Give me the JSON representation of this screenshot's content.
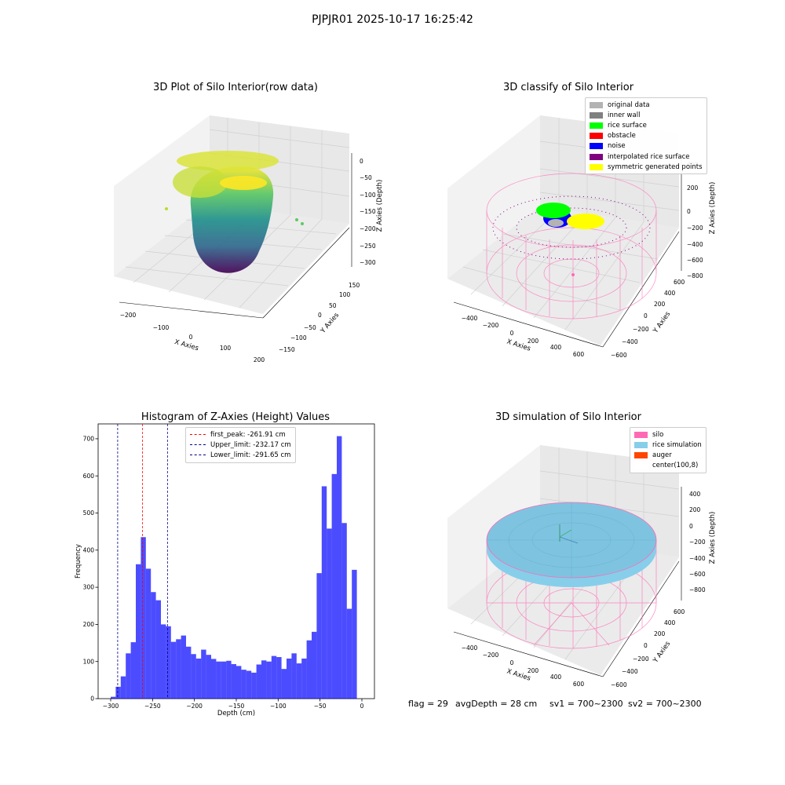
{
  "figure": {
    "title": "PJPJR01 2025-10-17 16:25:42",
    "status": {
      "flag": "flag = 29",
      "avg_depth": "avgDepth = 28 cm",
      "sv1": "sv1 = 700~2300",
      "sv2": "sv2 = 700~2300"
    }
  },
  "chart_data": [
    {
      "type": "scatter",
      "projection": "3d",
      "title": "3D Plot of Silo Interior(row data)",
      "xlabel": "X Axies",
      "ylabel": "Y Axies",
      "zlabel": "Z Axies (Depth)",
      "xticks": [
        "−200",
        "−100",
        "0",
        "100",
        "200"
      ],
      "yticks": [
        "−150",
        "−100",
        "−50",
        "0",
        "50",
        "100",
        "150"
      ],
      "zticks": [
        "0",
        "−50",
        "−100",
        "−150",
        "−200",
        "−250",
        "−300"
      ],
      "xlim": [
        -230,
        230
      ],
      "ylim": [
        -170,
        170
      ],
      "zlim": [
        -320,
        10
      ],
      "colormap": "viridis",
      "colors": {
        "high": "#fde725",
        "mid": "#21918c",
        "low": "#440154"
      }
    },
    {
      "type": "scatter",
      "projection": "3d",
      "title": "3D classify of Silo Interior",
      "xlabel": "X Axies",
      "ylabel": "Y Axies",
      "zlabel": "Z Axies (Depth)",
      "xticks": [
        "−400",
        "−200",
        "0",
        "200",
        "400",
        "600"
      ],
      "yticks": [
        "−600",
        "−400",
        "−200",
        "0",
        "200",
        "400",
        "600"
      ],
      "zticks": [
        "400",
        "200",
        "0",
        "−200",
        "−400",
        "−600",
        "−800"
      ],
      "xlim": [
        -500,
        700
      ],
      "ylim": [
        -650,
        650
      ],
      "zlim": [
        -900,
        500
      ],
      "legend": {
        "placement": "top-right",
        "items": [
          {
            "label": "original data",
            "color": "#b3b3b3"
          },
          {
            "label": "inner wall",
            "color": "#808080"
          },
          {
            "label": "rice surface",
            "color": "#00ff00"
          },
          {
            "label": "obstacle",
            "color": "#ff0000"
          },
          {
            "label": "noise",
            "color": "#0000ff"
          },
          {
            "label": "interpolated rice surface",
            "color": "#800080"
          },
          {
            "label": "symmetric generated points",
            "color": "#ffff00"
          }
        ]
      }
    },
    {
      "type": "bar",
      "title": "Histogram of Z-Axies (Height) Values",
      "xlabel": "Depth (cm)",
      "ylabel": "Frequency",
      "bin_start": -300,
      "bin_width": 6,
      "values": [
        5,
        32,
        60,
        122,
        152,
        362,
        435,
        350,
        287,
        265,
        200,
        195,
        153,
        160,
        170,
        140,
        120,
        108,
        132,
        118,
        107,
        100,
        100,
        102,
        93,
        88,
        78,
        75,
        70,
        92,
        103,
        100,
        115,
        112,
        80,
        108,
        122,
        95,
        108,
        157,
        180,
        338,
        572,
        458,
        605,
        707,
        473,
        242,
        347
      ],
      "xlim": [
        -315,
        15
      ],
      "ylim": [
        0,
        740
      ],
      "xticks": [
        -300,
        -250,
        -200,
        -150,
        -100,
        -50,
        0
      ],
      "yticks": [
        0,
        100,
        200,
        300,
        400,
        500,
        600,
        700
      ],
      "bar_color": "#0000ff",
      "vlines": [
        {
          "label": "first_peak: -261.91 cm",
          "x": -261.91,
          "color": "#ff0000"
        },
        {
          "label": "Upper_limit: -232.17 cm",
          "x": -232.17,
          "color": "#00008b"
        },
        {
          "label": "Lower_limit: -291.65 cm",
          "x": -291.65,
          "color": "#00008b"
        }
      ],
      "legend": {
        "placement": "top-center"
      }
    },
    {
      "type": "surface",
      "projection": "3d",
      "title": "3D simulation of Silo Interior",
      "xlabel": "X Axies",
      "ylabel": "Y Axies",
      "zlabel": "Z Axies (Depth)",
      "xticks": [
        "−400",
        "−200",
        "0",
        "200",
        "400",
        "600"
      ],
      "yticks": [
        "−600",
        "−400",
        "−200",
        "0",
        "200",
        "400",
        "600"
      ],
      "zticks": [
        "400",
        "200",
        "0",
        "−200",
        "−400",
        "−600",
        "−800"
      ],
      "xlim": [
        -500,
        700
      ],
      "ylim": [
        -650,
        650
      ],
      "zlim": [
        -900,
        500
      ],
      "legend": {
        "placement": "top-right",
        "items": [
          {
            "label": "silo",
            "color": "#ff69b4"
          },
          {
            "label": "rice simulation",
            "color": "#87ceeb"
          },
          {
            "label": "auger",
            "color": "#ff4500"
          },
          {
            "label": "center(100,8)",
            "color": "#ffffff"
          }
        ]
      }
    }
  ]
}
